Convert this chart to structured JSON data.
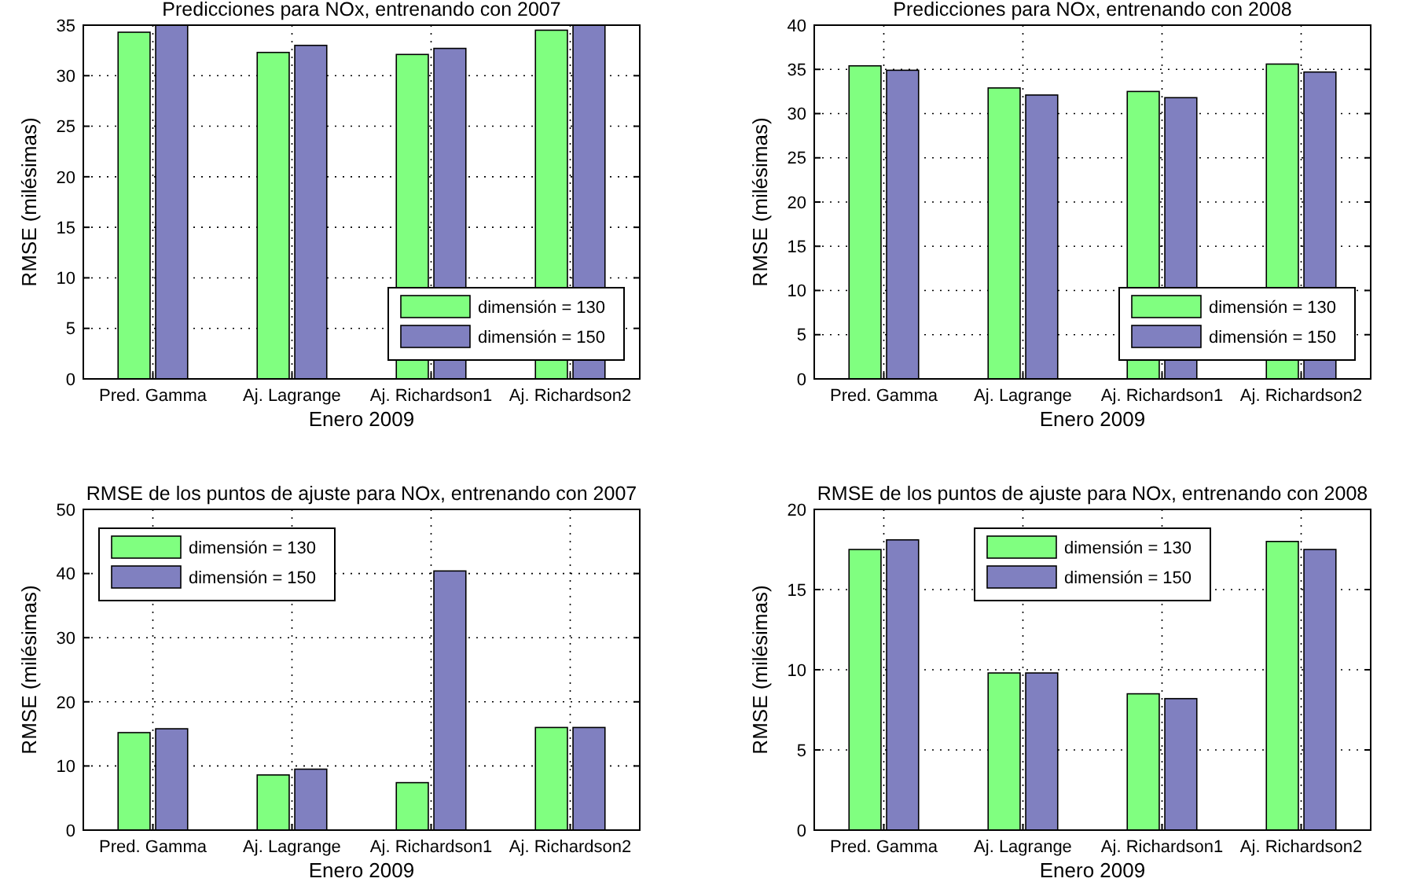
{
  "chart_data": [
    {
      "type": "bar",
      "title": "Predicciones para NOx, entrenando con 2007",
      "xlabel": "Enero 2009",
      "ylabel": "RMSE (milésimas)",
      "categories": [
        "Pred. Gamma",
        "Aj. Lagrange",
        "Aj. Richardson1",
        "Aj. Richardson2"
      ],
      "series": [
        {
          "name": "dimensión = 130",
          "color": "#80ff80",
          "values": [
            34.3,
            32.3,
            32.1,
            34.5
          ]
        },
        {
          "name": "dimensión = 150",
          "color": "#8080c0",
          "values": [
            35,
            33.0,
            32.7,
            35
          ]
        }
      ],
      "ylim": [
        0,
        35
      ],
      "yticks": [
        0,
        5,
        10,
        15,
        20,
        25,
        30,
        35
      ],
      "grid": true,
      "legend": "bottom right"
    },
    {
      "type": "bar",
      "title": "Predicciones para NOx, entrenando con 2008",
      "xlabel": "Enero 2009",
      "ylabel": "RMSE (milésimas)",
      "categories": [
        "Pred. Gamma",
        "Aj. Lagrange",
        "Aj. Richardson1",
        "Aj. Richardson2"
      ],
      "series": [
        {
          "name": "dimensión = 130",
          "color": "#80ff80",
          "values": [
            35.4,
            32.9,
            32.5,
            35.6
          ]
        },
        {
          "name": "dimensión = 150",
          "color": "#8080c0",
          "values": [
            34.9,
            32.1,
            31.8,
            34.7
          ]
        }
      ],
      "ylim": [
        0,
        40
      ],
      "yticks": [
        0,
        5,
        10,
        15,
        20,
        25,
        30,
        35,
        40
      ],
      "grid": true,
      "legend": "bottom right"
    },
    {
      "type": "bar",
      "title": "RMSE de los puntos de ajuste para NOx, entrenando con 2007",
      "xlabel": "Enero 2009",
      "ylabel": "RMSE (milésimas)",
      "categories": [
        "Pred. Gamma",
        "Aj. Lagrange",
        "Aj. Richardson1",
        "Aj. Richardson2"
      ],
      "series": [
        {
          "name": "dimensión = 130",
          "color": "#80ff80",
          "values": [
            15.2,
            8.6,
            7.4,
            16.0
          ]
        },
        {
          "name": "dimensión = 150",
          "color": "#8080c0",
          "values": [
            15.8,
            9.5,
            40.4,
            16.0
          ]
        }
      ],
      "ylim": [
        0,
        50
      ],
      "yticks": [
        0,
        10,
        20,
        30,
        40,
        50
      ],
      "grid": true,
      "legend": "top left"
    },
    {
      "type": "bar",
      "title": "RMSE de los puntos de ajuste para NOx, entrenando con 2008",
      "xlabel": "Enero 2009",
      "ylabel": "RMSE (milésimas)",
      "categories": [
        "Pred. Gamma",
        "Aj. Lagrange",
        "Aj. Richardson1",
        "Aj. Richardson2"
      ],
      "series": [
        {
          "name": "dimensión = 130",
          "color": "#80ff80",
          "values": [
            17.5,
            9.8,
            8.5,
            18.0
          ]
        },
        {
          "name": "dimensión = 150",
          "color": "#8080c0",
          "values": [
            18.1,
            9.8,
            8.2,
            17.5
          ]
        }
      ],
      "ylim": [
        0,
        20
      ],
      "yticks": [
        0,
        5,
        10,
        15,
        20
      ],
      "grid": true,
      "legend": "top"
    }
  ]
}
